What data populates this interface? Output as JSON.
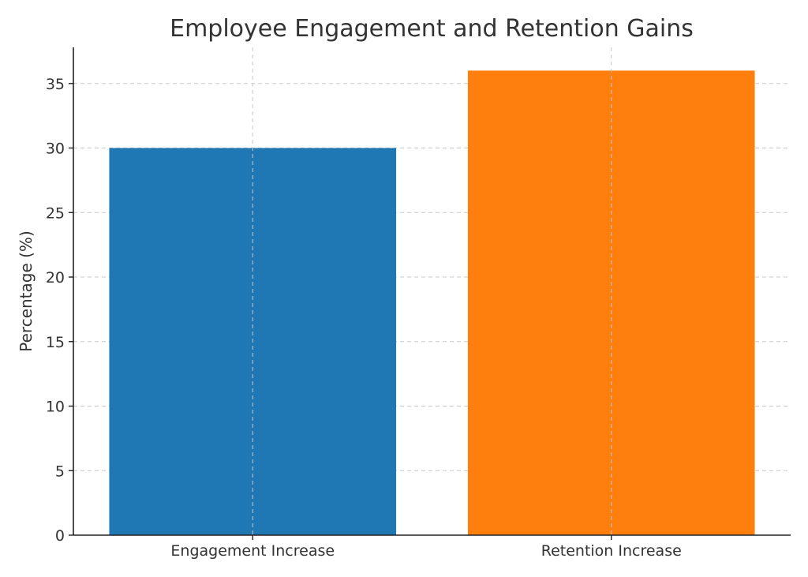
{
  "chart_data": {
    "type": "bar",
    "title": "Employee Engagement and Retention Gains",
    "xlabel": "",
    "ylabel": "Percentage (%)",
    "categories": [
      "Engagement Increase",
      "Retention Increase"
    ],
    "values": [
      30,
      36
    ],
    "colors": [
      "#1f77b4",
      "#ff7f0e"
    ],
    "ylim": [
      0,
      37.8
    ],
    "yticks": [
      0,
      5,
      10,
      15,
      20,
      25,
      30,
      35
    ],
    "grid": true
  }
}
